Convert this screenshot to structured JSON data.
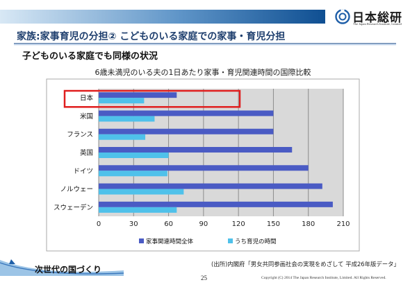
{
  "header": {
    "title": "家族:家事育児の分担② こどものいる家庭での家事・育児分担",
    "subtitle": "子どものいる家庭でも同様の状況",
    "logo_name": "日本総研",
    "logo_sub": "The Japan Research Institute, Limited"
  },
  "chart_data": {
    "type": "bar",
    "orientation": "horizontal",
    "title": "6歳未満児のいる夫の1日あたり家事・育児関連時間の国際比較",
    "categories": [
      "日本",
      "米国",
      "フランス",
      "英国",
      "ドイツ",
      "ノルウェー",
      "スウェーデン"
    ],
    "series": [
      {
        "name": "家事関連時間全体",
        "values": [
          67,
          150,
          150,
          166,
          180,
          192,
          201
        ],
        "color": "#4a5bc4"
      },
      {
        "name": "うち育児の時間",
        "values": [
          39,
          48,
          40,
          60,
          59,
          73,
          67
        ],
        "color": "#4fc1ea"
      }
    ],
    "xlim": [
      0,
      210
    ],
    "xticks": [
      0,
      30,
      60,
      90,
      120,
      150,
      180,
      210
    ],
    "grid": true,
    "legend": "bottom",
    "highlight": "日本"
  },
  "colors": {
    "highlight_box": "#e01e1e",
    "plot_bg": "#d9d9d9",
    "grid": "#8c8c8c"
  },
  "footer": {
    "tagline": "次世代の国づくり",
    "source": "(出所)内閣府「男女共同参画社会の実現をめざして 平成26年版データ」",
    "page": "25",
    "copyright": "Copyright (C) 2014 The Japan Research Institute, Limited. All Rights Reserved."
  }
}
